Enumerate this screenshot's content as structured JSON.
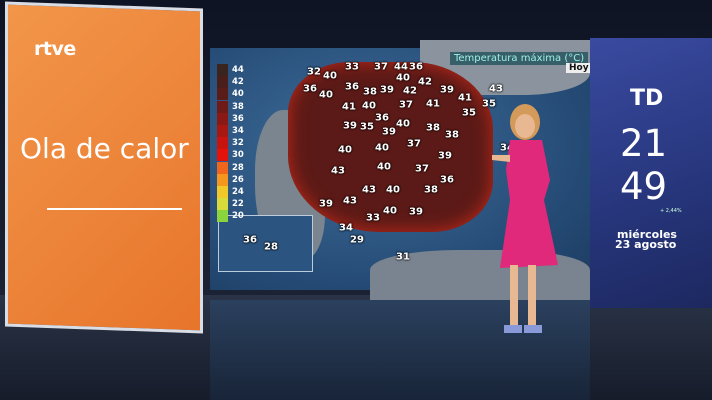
{
  "branding": {
    "channel_logo": "rtve",
    "clock_logo": "TD"
  },
  "headline": "Ola de calor",
  "map": {
    "title": "Temperatura máxima (°C)",
    "day": "Hoy",
    "legend": [
      "44",
      "42",
      "40",
      "38",
      "36",
      "34",
      "32",
      "30",
      "28",
      "26",
      "24",
      "22",
      "20"
    ],
    "legend_colors": [
      "#3a2420",
      "#4a1e1a",
      "#5a1c18",
      "#6e1a16",
      "#8a1814",
      "#a81812",
      "#c8140e",
      "#e4120a",
      "#f0661c",
      "#f5961e",
      "#f0c82a",
      "#d8dc3a",
      "#8cd43c"
    ],
    "labels": [
      "32",
      "40",
      "33",
      "37",
      "44",
      "36",
      "36",
      "40",
      "36",
      "38",
      "39",
      "40",
      "42",
      "42",
      "39",
      "43",
      "41",
      "40",
      "37",
      "41",
      "41",
      "35",
      "36",
      "35",
      "39",
      "40",
      "39",
      "38",
      "38",
      "35",
      "40",
      "40",
      "37",
      "39",
      "43",
      "40",
      "37",
      "36",
      "43",
      "40",
      "38",
      "39",
      "43",
      "40",
      "39",
      "33",
      "34",
      "29",
      "31",
      "34"
    ],
    "canary_labels": [
      "36",
      "28"
    ]
  },
  "clock": {
    "hours": "21",
    "minutes": "49",
    "ticker": "+ 2,44%",
    "weekday": "miércoles",
    "date": "23 agosto"
  }
}
